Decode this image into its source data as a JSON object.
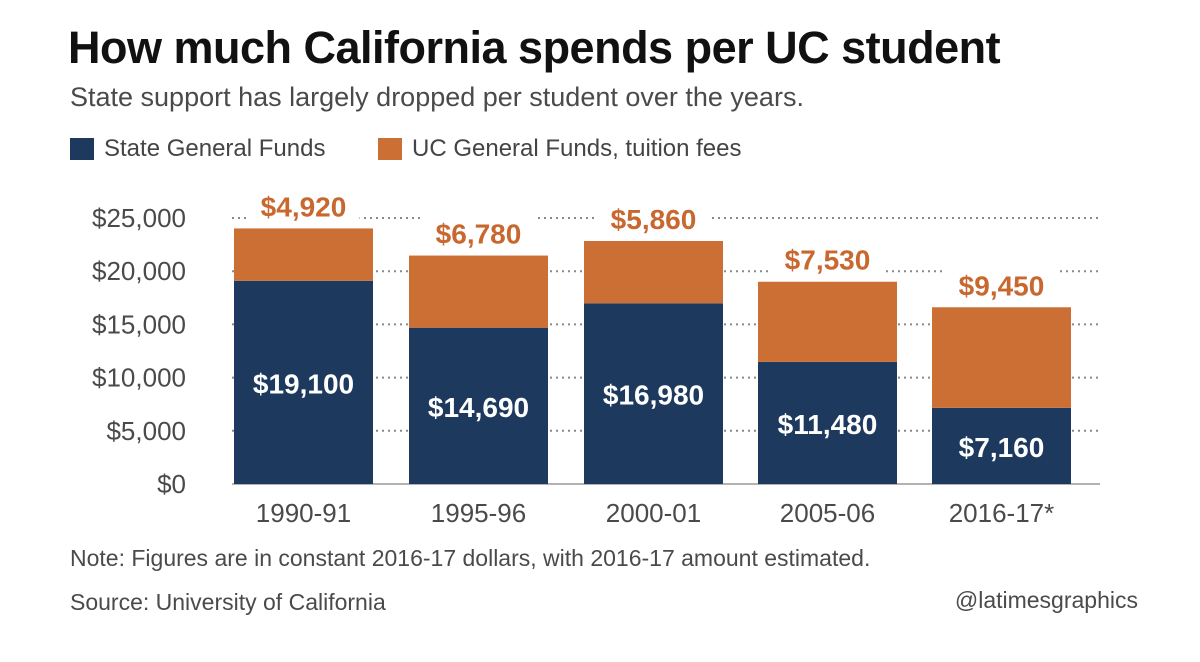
{
  "colors": {
    "state": "#1d3a5e",
    "uc": "#cc6f35",
    "uc_label": "#c8682f",
    "grid": "#8a8a8a",
    "text": "#4a4a4a"
  },
  "chart_data": {
    "type": "bar",
    "stacked": true,
    "title": "How much California spends per UC student",
    "subtitle": "State support has largely dropped per student over the years.",
    "categories": [
      "1990-91",
      "1995-96",
      "2000-01",
      "2005-06",
      "2016-17*"
    ],
    "series": [
      {
        "name": "State General Funds",
        "values": [
          19100,
          14690,
          16980,
          11480,
          7160
        ],
        "labels": [
          "$19,100",
          "$14,690",
          "$16,980",
          "$11,480",
          "$7,160"
        ]
      },
      {
        "name": "UC General Funds, tuition fees",
        "values": [
          4920,
          6780,
          5860,
          7530,
          9450
        ],
        "labels": [
          "$4,920",
          "$6,780",
          "$5,860",
          "$7,530",
          "$9,450"
        ]
      }
    ],
    "yticks": [
      0,
      5000,
      10000,
      15000,
      20000,
      25000
    ],
    "ytick_labels": [
      "$0",
      "$5,000",
      "$10,000",
      "$15,000",
      "$20,000",
      "$25,000"
    ],
    "ylim": [
      0,
      25000
    ],
    "xlabel": "",
    "ylabel": "",
    "grid": true,
    "legend": "top-left"
  },
  "note": "Note: Figures are in constant 2016-17 dollars, with 2016-17 amount estimated.",
  "source": "Source: University of California",
  "credit": "@latimesgraphics"
}
